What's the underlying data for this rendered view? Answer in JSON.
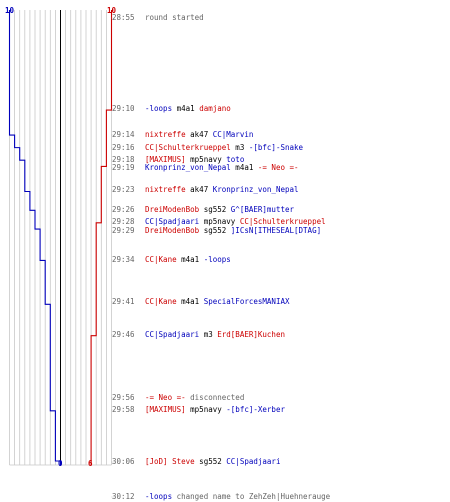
{
  "colors": {
    "red_team": "#cc0000",
    "blue_team": "#0000bb",
    "neutral": "#666666",
    "grid": "#c8c8c8",
    "axis": "#000000"
  },
  "scores": {
    "blue_top": "10",
    "red_top": "10",
    "blue_bottom": "0",
    "red_bottom": "6"
  },
  "events": [
    {
      "time": "28:55",
      "parts": [
        {
          "text": "round started",
          "team": "grey"
        }
      ]
    },
    {
      "time": "29:10",
      "parts": [
        {
          "text": "-loops",
          "team": "blue"
        },
        {
          "text": " m4a1 ",
          "team": "plain"
        },
        {
          "text": "damjano",
          "team": "red"
        }
      ]
    },
    {
      "time": "29:14",
      "parts": [
        {
          "text": "nixtreffe",
          "team": "red"
        },
        {
          "text": " ak47 ",
          "team": "plain"
        },
        {
          "text": "CC|Marvin",
          "team": "blue"
        }
      ]
    },
    {
      "time": "29:16",
      "parts": [
        {
          "text": "CC|Schulterkrueppel",
          "team": "red"
        },
        {
          "text": " m3 ",
          "team": "plain"
        },
        {
          "text": "-[bfc]-Snake",
          "team": "blue"
        }
      ]
    },
    {
      "time": "29:18",
      "parts": [
        {
          "text": "[MAXIMUS]",
          "team": "red"
        },
        {
          "text": " mp5navy ",
          "team": "plain"
        },
        {
          "text": "toto",
          "team": "blue"
        }
      ]
    },
    {
      "time": "29:19",
      "parts": [
        {
          "text": "Kronprinz_von_Nepal",
          "team": "blue"
        },
        {
          "text": " m4a1 ",
          "team": "plain"
        },
        {
          "text": "-= Neo =-",
          "team": "red"
        }
      ]
    },
    {
      "time": "29:23",
      "parts": [
        {
          "text": "nixtreffe",
          "team": "red"
        },
        {
          "text": " ak47 ",
          "team": "plain"
        },
        {
          "text": "Kronprinz_von_Nepal",
          "team": "blue"
        }
      ]
    },
    {
      "time": "29:26",
      "parts": [
        {
          "text": "DreiModenBob",
          "team": "red"
        },
        {
          "text": " sg552 ",
          "team": "plain"
        },
        {
          "text": "G^[BAER]mutter",
          "team": "blue"
        }
      ]
    },
    {
      "time": "29:28",
      "parts": [
        {
          "text": "CC|Spadjaari",
          "team": "blue"
        },
        {
          "text": " mp5navy ",
          "team": "plain"
        },
        {
          "text": "CC|Schulterkrueppel",
          "team": "red"
        }
      ]
    },
    {
      "time": "29:29",
      "parts": [
        {
          "text": "DreiModenBob",
          "team": "red"
        },
        {
          "text": " sg552 ",
          "team": "plain"
        },
        {
          "text": "]ICsN[ITHESEAL[DTAG]",
          "team": "blue"
        }
      ]
    },
    {
      "time": "29:34",
      "parts": [
        {
          "text": "CC|Kane",
          "team": "red"
        },
        {
          "text": " m4a1 ",
          "team": "plain"
        },
        {
          "text": "-loops",
          "team": "blue"
        }
      ]
    },
    {
      "time": "29:41",
      "parts": [
        {
          "text": "CC|Kane",
          "team": "red"
        },
        {
          "text": " m4a1 ",
          "team": "plain"
        },
        {
          "text": "SpecialForcesMANIAX",
          "team": "blue"
        }
      ]
    },
    {
      "time": "29:46",
      "parts": [
        {
          "text": "CC|Spadjaari",
          "team": "blue"
        },
        {
          "text": " m3 ",
          "team": "plain"
        },
        {
          "text": "Erd[BAER]Kuchen",
          "team": "red"
        }
      ]
    },
    {
      "time": "29:56",
      "parts": [
        {
          "text": "-= Neo =-",
          "team": "red"
        },
        {
          "text": " disconnected",
          "team": "grey"
        }
      ]
    },
    {
      "time": "29:58",
      "parts": [
        {
          "text": "[MAXIMUS]",
          "team": "red"
        },
        {
          "text": " mp5navy ",
          "team": "plain"
        },
        {
          "text": "-[bfc]-Xerber",
          "team": "blue"
        }
      ]
    },
    {
      "time": "30:06",
      "parts": [
        {
          "text": "[JoD] Steve",
          "team": "red"
        },
        {
          "text": " sg552 ",
          "team": "plain"
        },
        {
          "text": "CC|Spadjaari",
          "team": "blue"
        }
      ]
    },
    {
      "time": "30:12",
      "parts": [
        {
          "text": "-loops",
          "team": "blue"
        },
        {
          "text": " changed name to ZehZeh|Huehnerauge",
          "team": "grey"
        }
      ]
    }
  ],
  "chart_data": {
    "type": "line",
    "title": "",
    "xlabel": "",
    "ylabel": "",
    "note": "players alive per team over round time",
    "series": [
      {
        "team": "blue",
        "steps": [
          [
            "28:55",
            10
          ],
          [
            "29:14",
            9
          ],
          [
            "29:16",
            8
          ],
          [
            "29:18",
            7
          ],
          [
            "29:23",
            6
          ],
          [
            "29:26",
            5
          ],
          [
            "29:29",
            4
          ],
          [
            "29:34",
            3
          ],
          [
            "29:41",
            2
          ],
          [
            "29:58",
            1
          ],
          [
            "30:06",
            0
          ]
        ]
      },
      {
        "team": "red",
        "steps": [
          [
            "28:55",
            10
          ],
          [
            "29:10",
            9
          ],
          [
            "29:19",
            8
          ],
          [
            "29:28",
            7
          ],
          [
            "29:46",
            6
          ],
          [
            "29:56",
            6
          ]
        ]
      }
    ]
  }
}
